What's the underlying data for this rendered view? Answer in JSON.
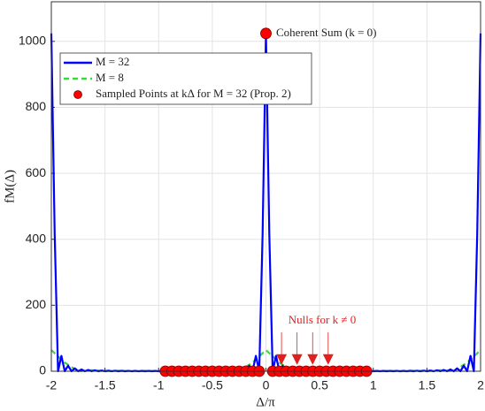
{
  "chart_data": {
    "type": "line",
    "xlabel": "Δ/π",
    "ylabel": "fM(Δ)",
    "xlim": [
      -2,
      2
    ],
    "ylim": [
      0,
      1120
    ],
    "xticks": [
      -2,
      -1.5,
      -1,
      -0.5,
      0,
      0.5,
      1,
      1.5,
      2
    ],
    "yticks": [
      0,
      200,
      400,
      600,
      800,
      1000
    ],
    "grid": true,
    "legend": "upper left",
    "series": [
      {
        "name": "M = 32",
        "color": "#0000ff",
        "style": "solid",
        "x": [
          -2,
          -1.96875,
          -1.9375,
          -1.90625,
          -1.875,
          -1.84375,
          -1.8125,
          -1.78125,
          -1.75,
          -1.71875,
          -1.6875,
          -1.65625,
          -1.625,
          -1.59375,
          -1.5625,
          -1.53125,
          -1.5,
          -1.46875,
          -1.4375,
          -1.40625,
          -1.375,
          -1.34375,
          -1.3125,
          -1.28125,
          -1.25,
          -1.21875,
          -1.1875,
          -1.15625,
          -1.125,
          -1.09375,
          -1.0625,
          -1.03125,
          -1,
          -0.96875,
          -0.9375,
          -0.90625,
          -0.875,
          -0.84375,
          -0.8125,
          -0.78125,
          -0.75,
          -0.71875,
          -0.6875,
          -0.65625,
          -0.625,
          -0.59375,
          -0.5625,
          -0.53125,
          -0.5,
          -0.46875,
          -0.4375,
          -0.40625,
          -0.375,
          -0.34375,
          -0.3125,
          -0.28125,
          -0.25,
          -0.21875,
          -0.1875,
          -0.15625,
          -0.125,
          -0.09375,
          -0.0625,
          -0.03125,
          0,
          0.03125,
          0.0625,
          0.09375,
          0.125,
          0.15625,
          0.1875,
          0.21875,
          0.25,
          0.28125,
          0.3125,
          0.34375,
          0.375,
          0.40625,
          0.4375,
          0.46875,
          0.5,
          0.53125,
          0.5625,
          0.59375,
          0.625,
          0.65625,
          0.6875,
          0.71875,
          0.75,
          0.78125,
          0.8125,
          0.84375,
          0.875,
          0.90625,
          0.9375,
          0.96875,
          1,
          1.03125,
          1.0625,
          1.09375,
          1.125,
          1.15625,
          1.1875,
          1.21875,
          1.25,
          1.28125,
          1.3125,
          1.34375,
          1.375,
          1.40625,
          1.4375,
          1.46875,
          1.5,
          1.53125,
          1.5625,
          1.59375,
          1.625,
          1.65625,
          1.6875,
          1.71875,
          1.75,
          1.78125,
          1.8125,
          1.84375,
          1.875,
          1.90625,
          1.9375,
          1.96875,
          2
        ],
        "values": [
          1024,
          415.3,
          0,
          46.45,
          0,
          16.94,
          0,
          8.811,
          0,
          5.47,
          0,
          3.784,
          0,
          2.818,
          0,
          2.217,
          0,
          1.821,
          0,
          1.55,
          0,
          1.359,
          0,
          1.224,
          0,
          1.128,
          0,
          1.063,
          0,
          1.022,
          0,
          1.002,
          0,
          1.002,
          0,
          1.022,
          0,
          1.063,
          0,
          1.128,
          0,
          1.224,
          0,
          1.359,
          0,
          1.55,
          0,
          1.821,
          0,
          2.217,
          0,
          2.818,
          0,
          3.784,
          0,
          5.47,
          0,
          8.811,
          0,
          16.94,
          0,
          46.45,
          0,
          415.3,
          1024,
          415.3,
          0,
          46.45,
          0,
          16.94,
          0,
          8.811,
          0,
          5.47,
          0,
          3.784,
          0,
          2.818,
          0,
          2.217,
          0,
          1.821,
          0,
          1.55,
          0,
          1.359,
          0,
          1.224,
          0,
          1.128,
          0,
          1.063,
          0,
          1.022,
          0,
          1.002,
          0,
          1.002,
          0,
          1.022,
          0,
          1.063,
          0,
          1.128,
          0,
          1.224,
          0,
          1.359,
          0,
          1.55,
          0,
          1.821,
          0,
          2.217,
          0,
          2.818,
          0,
          3.784,
          0,
          5.47,
          0,
          8.811,
          0,
          16.94,
          0,
          46.45,
          0,
          415.3,
          1024
        ]
      },
      {
        "name": "M = 8",
        "color": "#33dd33",
        "style": "dashed",
        "x": [
          -2,
          -1.875,
          -1.75,
          -1.625,
          -1.5,
          -1.375,
          -1.25,
          -1.125,
          -1,
          -0.875,
          -0.75,
          -0.625,
          -0.5,
          -0.375,
          -0.25,
          -0.125,
          0,
          0.125,
          0.25,
          0.375,
          0.5,
          0.625,
          0.75,
          0.875,
          1,
          1.125,
          1.25,
          1.375,
          1.5,
          1.625,
          1.75,
          1.875,
          2
        ],
        "values": [
          64,
          26.27,
          0,
          3.24,
          0,
          1.446,
          0,
          1.04,
          0,
          1.04,
          0,
          1.446,
          0,
          3.24,
          0,
          26.27,
          64,
          26.27,
          0,
          3.24,
          0,
          1.446,
          0,
          1.04,
          0,
          1.04,
          0,
          1.446,
          0,
          3.24,
          0,
          26.27,
          64
        ]
      },
      {
        "name": "Sampled Points at kΔ for M = 32 (Prop. 2)",
        "color": "#ff0000",
        "style": "markers",
        "x": [
          -0.9375,
          -0.875,
          -0.8125,
          -0.75,
          -0.6875,
          -0.625,
          -0.5625,
          -0.5,
          -0.4375,
          -0.375,
          -0.3125,
          -0.25,
          -0.1875,
          -0.125,
          -0.0625,
          0,
          0.0625,
          0.125,
          0.1875,
          0.25,
          0.3125,
          0.375,
          0.4375,
          0.5,
          0.5625,
          0.625,
          0.6875,
          0.75,
          0.8125,
          0.875,
          0.9375
        ],
        "values": [
          0,
          0,
          0,
          0,
          0,
          0,
          0,
          0,
          0,
          0,
          0,
          0,
          0,
          0,
          0,
          1024,
          0,
          0,
          0,
          0,
          0,
          0,
          0,
          0,
          0,
          0,
          0,
          0,
          0,
          0,
          0
        ]
      }
    ],
    "annotations": [
      {
        "text": "Coherent Sum (k = 0)"
      },
      {
        "text": "Nulls for k ≠ 0",
        "color": "#e02020",
        "x": [
          0.145,
          0.29,
          0.435,
          0.58
        ],
        "y": 30
      }
    ]
  }
}
